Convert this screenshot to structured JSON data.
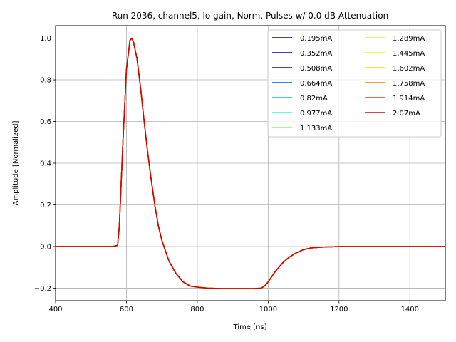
{
  "chart_data": {
    "type": "line",
    "title": "Run 2036, channel5, lo gain, Norm. Pulses w/ 0.0 dB Attenuation",
    "xlabel": "Time [ns]",
    "ylabel": "Amplitude [Normalized]",
    "xlim": [
      400,
      1500
    ],
    "ylim": [
      -0.26,
      1.06
    ],
    "xticks": [
      400,
      600,
      800,
      1000,
      1200,
      1400
    ],
    "yticks": [
      -0.2,
      0.0,
      0.2,
      0.4,
      0.6,
      0.8,
      1.0
    ],
    "grid": true,
    "legend_position": "top-right",
    "legend_columns": 2,
    "x": [
      400,
      560,
      575,
      580,
      590,
      600,
      610,
      615,
      620,
      630,
      640,
      650,
      660,
      670,
      680,
      690,
      700,
      720,
      740,
      760,
      780,
      800,
      830,
      870,
      920,
      960,
      980,
      990,
      1000,
      1020,
      1040,
      1060,
      1080,
      1100,
      1120,
      1150,
      1200,
      1300,
      1400,
      1500
    ],
    "series": [
      {
        "name": "0.195mA",
        "color": "#00007f",
        "values": [
          0,
          0,
          0.005,
          0.1,
          0.5,
          0.85,
          0.99,
          1.0,
          0.98,
          0.9,
          0.76,
          0.6,
          0.45,
          0.32,
          0.2,
          0.1,
          0.03,
          -0.07,
          -0.13,
          -0.17,
          -0.19,
          -0.195,
          -0.2,
          -0.202,
          -0.202,
          -0.202,
          -0.2,
          -0.19,
          -0.17,
          -0.12,
          -0.08,
          -0.05,
          -0.03,
          -0.015,
          -0.007,
          -0.003,
          0,
          0,
          0,
          0
        ]
      },
      {
        "name": "0.352mA",
        "color": "#0000b2",
        "values": [
          0,
          0,
          0.005,
          0.1,
          0.5,
          0.85,
          0.99,
          1.0,
          0.98,
          0.9,
          0.76,
          0.6,
          0.45,
          0.32,
          0.2,
          0.1,
          0.03,
          -0.07,
          -0.13,
          -0.17,
          -0.19,
          -0.195,
          -0.2,
          -0.202,
          -0.202,
          -0.202,
          -0.2,
          -0.19,
          -0.17,
          -0.12,
          -0.08,
          -0.05,
          -0.03,
          -0.015,
          -0.007,
          -0.003,
          0,
          0,
          0,
          0
        ]
      },
      {
        "name": "0.508mA",
        "color": "#0000f1",
        "values": [
          0,
          0,
          0.005,
          0.1,
          0.5,
          0.85,
          0.99,
          1.0,
          0.98,
          0.9,
          0.76,
          0.6,
          0.45,
          0.32,
          0.2,
          0.1,
          0.03,
          -0.07,
          -0.13,
          -0.17,
          -0.19,
          -0.195,
          -0.2,
          -0.202,
          -0.202,
          -0.202,
          -0.2,
          -0.19,
          -0.17,
          -0.12,
          -0.08,
          -0.05,
          -0.03,
          -0.015,
          -0.007,
          -0.003,
          0,
          0,
          0,
          0
        ]
      },
      {
        "name": "0.664mA",
        "color": "#004cff",
        "values": [
          0,
          0,
          0.005,
          0.1,
          0.5,
          0.85,
          0.99,
          1.0,
          0.98,
          0.9,
          0.76,
          0.6,
          0.45,
          0.32,
          0.2,
          0.1,
          0.03,
          -0.07,
          -0.13,
          -0.17,
          -0.19,
          -0.195,
          -0.2,
          -0.202,
          -0.202,
          -0.202,
          -0.2,
          -0.19,
          -0.17,
          -0.12,
          -0.08,
          -0.05,
          -0.03,
          -0.015,
          -0.007,
          -0.003,
          0,
          0,
          0,
          0
        ]
      },
      {
        "name": "0.82mA",
        "color": "#00b0ff",
        "values": [
          0,
          0,
          0.005,
          0.1,
          0.5,
          0.85,
          0.99,
          1.0,
          0.98,
          0.9,
          0.76,
          0.6,
          0.45,
          0.32,
          0.2,
          0.1,
          0.03,
          -0.07,
          -0.13,
          -0.17,
          -0.19,
          -0.195,
          -0.2,
          -0.202,
          -0.202,
          -0.202,
          -0.2,
          -0.19,
          -0.17,
          -0.12,
          -0.08,
          -0.05,
          -0.03,
          -0.015,
          -0.007,
          -0.003,
          0,
          0,
          0,
          0
        ]
      },
      {
        "name": "0.977mA",
        "color": "#29ffce",
        "values": [
          0,
          0,
          0.005,
          0.1,
          0.5,
          0.85,
          0.99,
          1.0,
          0.98,
          0.9,
          0.76,
          0.6,
          0.45,
          0.32,
          0.2,
          0.1,
          0.03,
          -0.07,
          -0.13,
          -0.17,
          -0.19,
          -0.195,
          -0.2,
          -0.202,
          -0.202,
          -0.202,
          -0.2,
          -0.19,
          -0.17,
          -0.12,
          -0.08,
          -0.05,
          -0.03,
          -0.015,
          -0.007,
          -0.003,
          0,
          0,
          0,
          0
        ]
      },
      {
        "name": "1.133mA",
        "color": "#7dff7a",
        "values": [
          0,
          0,
          0.005,
          0.1,
          0.5,
          0.85,
          0.99,
          1.0,
          0.98,
          0.9,
          0.76,
          0.6,
          0.45,
          0.32,
          0.2,
          0.1,
          0.03,
          -0.07,
          -0.13,
          -0.17,
          -0.19,
          -0.195,
          -0.2,
          -0.202,
          -0.202,
          -0.202,
          -0.2,
          -0.19,
          -0.17,
          -0.12,
          -0.08,
          -0.05,
          -0.03,
          -0.015,
          -0.007,
          -0.003,
          0,
          0,
          0,
          0
        ]
      },
      {
        "name": "1.289mA",
        "color": "#b6ff41",
        "values": [
          0,
          0,
          0.005,
          0.1,
          0.5,
          0.85,
          0.99,
          1.0,
          0.98,
          0.9,
          0.76,
          0.6,
          0.45,
          0.32,
          0.2,
          0.1,
          0.03,
          -0.07,
          -0.13,
          -0.17,
          -0.19,
          -0.195,
          -0.2,
          -0.202,
          -0.202,
          -0.202,
          -0.2,
          -0.19,
          -0.17,
          -0.12,
          -0.08,
          -0.05,
          -0.03,
          -0.015,
          -0.007,
          -0.003,
          0,
          0,
          0,
          0
        ]
      },
      {
        "name": "1.445mA",
        "color": "#e4ff1a",
        "values": [
          0,
          0,
          0.005,
          0.1,
          0.5,
          0.85,
          0.99,
          1.0,
          0.98,
          0.9,
          0.76,
          0.6,
          0.45,
          0.32,
          0.2,
          0.1,
          0.03,
          -0.07,
          -0.13,
          -0.17,
          -0.19,
          -0.195,
          -0.2,
          -0.202,
          -0.202,
          -0.202,
          -0.2,
          -0.19,
          -0.17,
          -0.12,
          -0.08,
          -0.05,
          -0.03,
          -0.015,
          -0.007,
          -0.003,
          0,
          0,
          0,
          0
        ]
      },
      {
        "name": "1.602mA",
        "color": "#ffd000",
        "values": [
          0,
          0,
          0.005,
          0.1,
          0.5,
          0.85,
          0.99,
          1.0,
          0.98,
          0.9,
          0.76,
          0.6,
          0.45,
          0.32,
          0.2,
          0.1,
          0.03,
          -0.07,
          -0.13,
          -0.17,
          -0.19,
          -0.195,
          -0.2,
          -0.202,
          -0.202,
          -0.202,
          -0.2,
          -0.19,
          -0.17,
          -0.12,
          -0.08,
          -0.05,
          -0.03,
          -0.015,
          -0.007,
          -0.003,
          0,
          0,
          0,
          0
        ]
      },
      {
        "name": "1.758mA",
        "color": "#ff7300",
        "values": [
          0,
          0,
          0.005,
          0.1,
          0.5,
          0.85,
          0.99,
          1.0,
          0.98,
          0.9,
          0.76,
          0.6,
          0.45,
          0.32,
          0.2,
          0.1,
          0.03,
          -0.07,
          -0.13,
          -0.17,
          -0.19,
          -0.195,
          -0.2,
          -0.202,
          -0.202,
          -0.202,
          -0.2,
          -0.19,
          -0.17,
          -0.12,
          -0.08,
          -0.05,
          -0.03,
          -0.015,
          -0.007,
          -0.003,
          0,
          0,
          0,
          0
        ]
      },
      {
        "name": "1.914mA",
        "color": "#ff3000",
        "values": [
          0,
          0,
          0.005,
          0.1,
          0.5,
          0.85,
          0.99,
          1.0,
          0.98,
          0.9,
          0.76,
          0.6,
          0.45,
          0.32,
          0.2,
          0.1,
          0.03,
          -0.07,
          -0.13,
          -0.17,
          -0.19,
          -0.195,
          -0.2,
          -0.202,
          -0.202,
          -0.202,
          -0.2,
          -0.19,
          -0.17,
          -0.12,
          -0.08,
          -0.05,
          -0.03,
          -0.015,
          -0.007,
          -0.003,
          0,
          0,
          0,
          0
        ]
      },
      {
        "name": "2.07mA",
        "color": "#d50000",
        "values": [
          0,
          0,
          0.005,
          0.1,
          0.5,
          0.85,
          0.99,
          1.0,
          0.98,
          0.9,
          0.76,
          0.6,
          0.45,
          0.32,
          0.2,
          0.1,
          0.03,
          -0.07,
          -0.13,
          -0.17,
          -0.19,
          -0.195,
          -0.2,
          -0.202,
          -0.202,
          -0.202,
          -0.2,
          -0.19,
          -0.17,
          -0.12,
          -0.08,
          -0.05,
          -0.03,
          -0.015,
          -0.007,
          -0.003,
          0,
          0,
          0,
          0
        ]
      }
    ]
  }
}
